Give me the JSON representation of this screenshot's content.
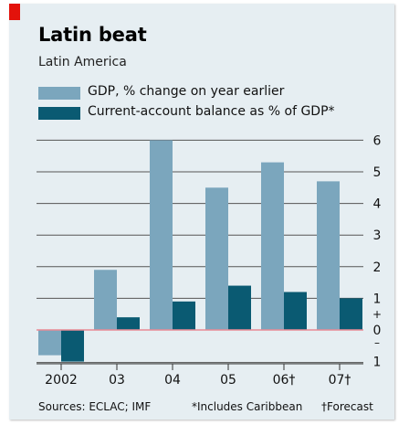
{
  "title": "Latin beat",
  "subtitle": "Latin America",
  "legend": [
    {
      "label": "GDP, % change on year earlier",
      "color": "#7ba6bd"
    },
    {
      "label": "Current-account balance as % of GDP*",
      "color": "#0a5a72"
    }
  ],
  "footer": {
    "sources": "Sources: ECLAC; IMF",
    "note1": "*Includes Caribbean",
    "note2": "†Forecast"
  },
  "chart_data": {
    "type": "bar",
    "categories": [
      "2002",
      "03",
      "04",
      "05",
      "06†",
      "07†"
    ],
    "series": [
      {
        "name": "GDP, % change on year earlier",
        "values": [
          -0.8,
          1.9,
          6.0,
          4.5,
          5.3,
          4.7
        ],
        "color": "#7ba6bd"
      },
      {
        "name": "Current-account balance as % of GDP*",
        "values": [
          -1.0,
          0.4,
          0.9,
          1.4,
          1.2,
          1.0
        ],
        "color": "#0a5a72"
      }
    ],
    "yticks": [
      "6",
      "5",
      "4",
      "3",
      "2",
      "1",
      "+\n0\n–",
      "1"
    ],
    "ylim": [
      -1,
      6
    ],
    "grid": true,
    "zero_line_color": "#e98a95"
  }
}
